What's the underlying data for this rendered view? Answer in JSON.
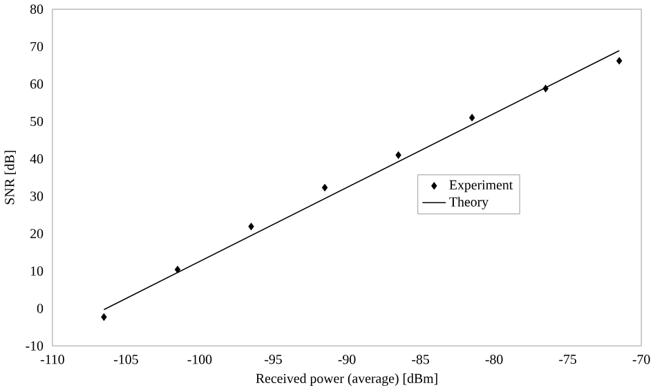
{
  "chart_data": {
    "type": "scatter",
    "xlabel": "Received power (average) [dBm]",
    "ylabel": "SNR [dB]",
    "xlim": [
      -110,
      -70
    ],
    "xticks": [
      -110,
      -105,
      -100,
      -95,
      -90,
      -85,
      -80,
      -75,
      -70
    ],
    "ylim": [
      -10,
      80
    ],
    "yticks": [
      -10,
      0,
      10,
      20,
      30,
      40,
      50,
      60,
      70,
      80
    ],
    "grid": false,
    "legend": "right",
    "series": [
      {
        "name": "Experiment",
        "marker": "diamond",
        "color": "#000000",
        "x": [
          -106.5,
          -101.5,
          -96.5,
          -91.5,
          -86.5,
          -81.5,
          -76.5,
          -71.5
        ],
        "values": [
          -2.3,
          10.4,
          21.9,
          32.3,
          41.0,
          51.0,
          58.8,
          66.2
        ]
      },
      {
        "name": "Theory",
        "type": "line",
        "marker": "none",
        "color": "#000000",
        "x": [
          -106.5,
          -71.5
        ],
        "values": [
          -0.3,
          68.9
        ]
      }
    ]
  }
}
